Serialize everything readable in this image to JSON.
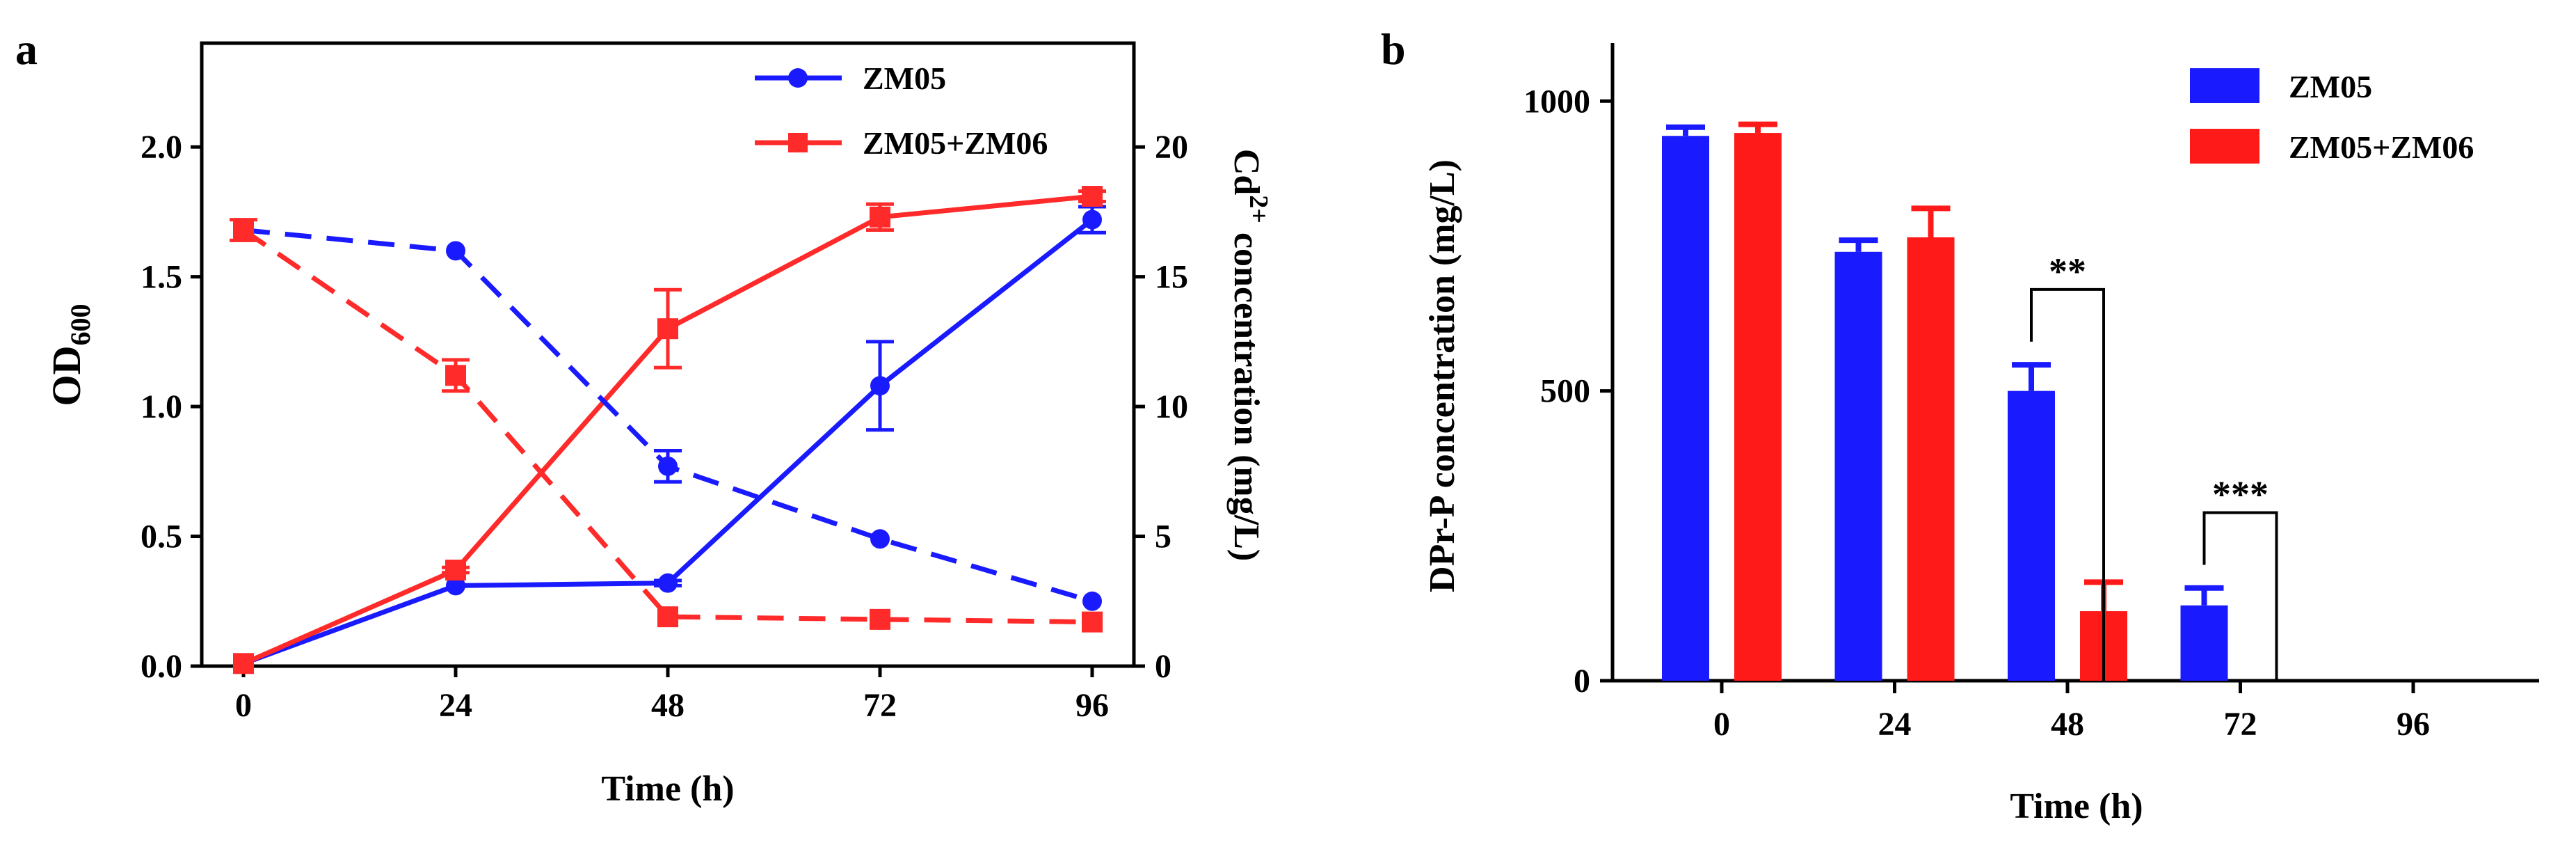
{
  "chart_data": [
    {
      "panel": "a",
      "type": "line",
      "x": [
        0,
        24,
        48,
        72,
        96
      ],
      "xticks": [
        "0",
        "24",
        "48",
        "72",
        "96"
      ],
      "xlabel": "Time (h)",
      "ylabel_left": {
        "base": "OD",
        "sub": "600"
      },
      "ylabel_right": {
        "base": "Cd",
        "sup": "2+",
        "rest": " concentration (mg/L)"
      },
      "ylim_left": [
        0,
        2.4
      ],
      "yticks_left": [
        "0.0",
        "0.5",
        "1.0",
        "1.5",
        "2.0"
      ],
      "ylim_right": [
        0,
        24
      ],
      "yticks_right": [
        "0",
        "5",
        "10",
        "15",
        "20"
      ],
      "legend": [
        "ZM05",
        "ZM05+ZM06"
      ],
      "series": [
        {
          "name": "ZM05",
          "measure": "OD600",
          "axis": "left",
          "style": "solid",
          "marker": "circle",
          "color": "#1a1aff",
          "values": [
            0.01,
            0.31,
            0.32,
            1.08,
            1.72
          ],
          "errors": [
            0.0,
            0.0,
            0.01,
            0.17,
            0.05
          ]
        },
        {
          "name": "ZM05+ZM06",
          "measure": "OD600",
          "axis": "left",
          "style": "solid",
          "marker": "square",
          "color": "#ff2a2a",
          "values": [
            0.01,
            0.37,
            1.3,
            1.73,
            1.81
          ],
          "errors": [
            0.0,
            0.01,
            0.15,
            0.05,
            0.02
          ]
        },
        {
          "name": "ZM05",
          "measure": "Cd2+ concentration",
          "axis": "right",
          "style": "dashed",
          "marker": "circle",
          "color": "#1a1aff",
          "values": [
            16.8,
            16.0,
            7.7,
            4.9,
            2.5
          ],
          "errors": [
            0.0,
            0.0,
            0.6,
            0.0,
            0.0
          ]
        },
        {
          "name": "ZM05+ZM06",
          "measure": "Cd2+ concentration",
          "axis": "right",
          "style": "dashed",
          "marker": "square",
          "color": "#ff2a2a",
          "values": [
            16.8,
            11.2,
            1.9,
            1.8,
            1.7
          ],
          "errors": [
            0.4,
            0.6,
            0.0,
            0.0,
            0.0
          ]
        }
      ]
    },
    {
      "panel": "b",
      "type": "bar",
      "categories": [
        "0",
        "24",
        "48",
        "72",
        "96"
      ],
      "xlabel": "Time (h)",
      "ylabel": "DPr-P concentration (mg/L)",
      "ylim": [
        0,
        1100
      ],
      "yticks": [
        "0",
        "500",
        "1000"
      ],
      "legend": [
        "ZM05",
        "ZM05+ZM06"
      ],
      "series": [
        {
          "name": "ZM05",
          "color": "#1a1aff",
          "values": [
            940,
            740,
            500,
            130,
            0
          ],
          "errors": [
            15,
            20,
            45,
            30,
            0
          ]
        },
        {
          "name": "ZM05+ZM06",
          "color": "#ff1a1a",
          "values": [
            945,
            765,
            120,
            0,
            0
          ],
          "errors": [
            15,
            50,
            50,
            0,
            0
          ]
        }
      ],
      "significance": [
        {
          "category_index": 2,
          "label": "**"
        },
        {
          "category_index": 3,
          "label": "***"
        }
      ]
    }
  ]
}
